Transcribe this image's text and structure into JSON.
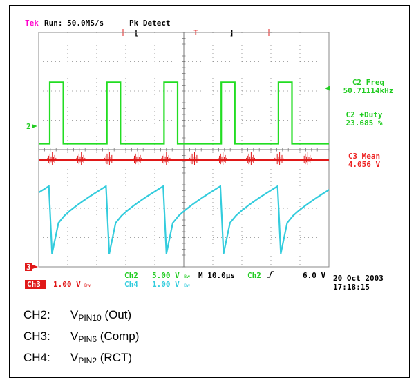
{
  "header": {
    "brand": "Tek",
    "run_status": "Run: 50.0MS/s",
    "acq_mode": "Pk Detect",
    "trigger_marker": "T"
  },
  "measurements": [
    {
      "label": "C2 Freq",
      "value": "50.71114kHz",
      "color": "#22cc22"
    },
    {
      "label": "C2 +Duty",
      "value": "23.685 %",
      "color": "#22cc22"
    },
    {
      "label": "C3 Mean",
      "value": "4.056 V",
      "color": "#ee2222"
    }
  ],
  "channel_markers": {
    "ch2": "2",
    "ch3": "3"
  },
  "readouts": {
    "ch2_label": "Ch2",
    "ch2_scale": "5.00 V",
    "ch3_label": "Ch3",
    "ch3_scale": "1.00 V",
    "ch4_label": "Ch4",
    "ch4_scale": "1.00 V",
    "bw_symbol": "Bw",
    "timebase": "M 10.0µs",
    "trig_source": "Ch2",
    "trig_level": "6.0 V",
    "date": "20 Oct 2003",
    "time": "17:18:15"
  },
  "legend": [
    {
      "ch": "CH2:",
      "v": "V",
      "sub": "PIN10",
      "desc": " (Out)"
    },
    {
      "ch": "CH3:",
      "v": "V",
      "sub": "PIN6",
      "desc": " (Comp)"
    },
    {
      "ch": "CH4:",
      "v": "V",
      "sub": "PIN2",
      "desc": " (RCT)"
    }
  ],
  "colors": {
    "ch2": "#22dd22",
    "ch3": "#e01818",
    "ch4": "#33ccdd",
    "grid": "#888888",
    "brand": "#ff00cc"
  },
  "chart_data": {
    "type": "line",
    "title": "",
    "xlabel": "",
    "ylabel": "",
    "x_unit": "divisions",
    "xlim": [
      0,
      10
    ],
    "ylim": [
      0,
      8
    ],
    "grid": true,
    "series": [
      {
        "name": "Ch2",
        "shape": "pulse",
        "period_div": 1.97,
        "duty": 0.237,
        "first_rise_div": 0.38,
        "high_div": 6.3,
        "low_div": 4.2
      },
      {
        "name": "Ch3",
        "shape": "flat-with-spikes",
        "level_div": 3.65,
        "spike_div": [
          0.45,
          1.45,
          2.42,
          3.4,
          4.38,
          5.35,
          6.33,
          7.3,
          8.28,
          9.25
        ]
      },
      {
        "name": "Ch4",
        "shape": "sawtooth",
        "period_div": 1.97,
        "peak_div": 2.75,
        "trough_div": 0.45,
        "first_peak_div": 0.35
      }
    ]
  }
}
